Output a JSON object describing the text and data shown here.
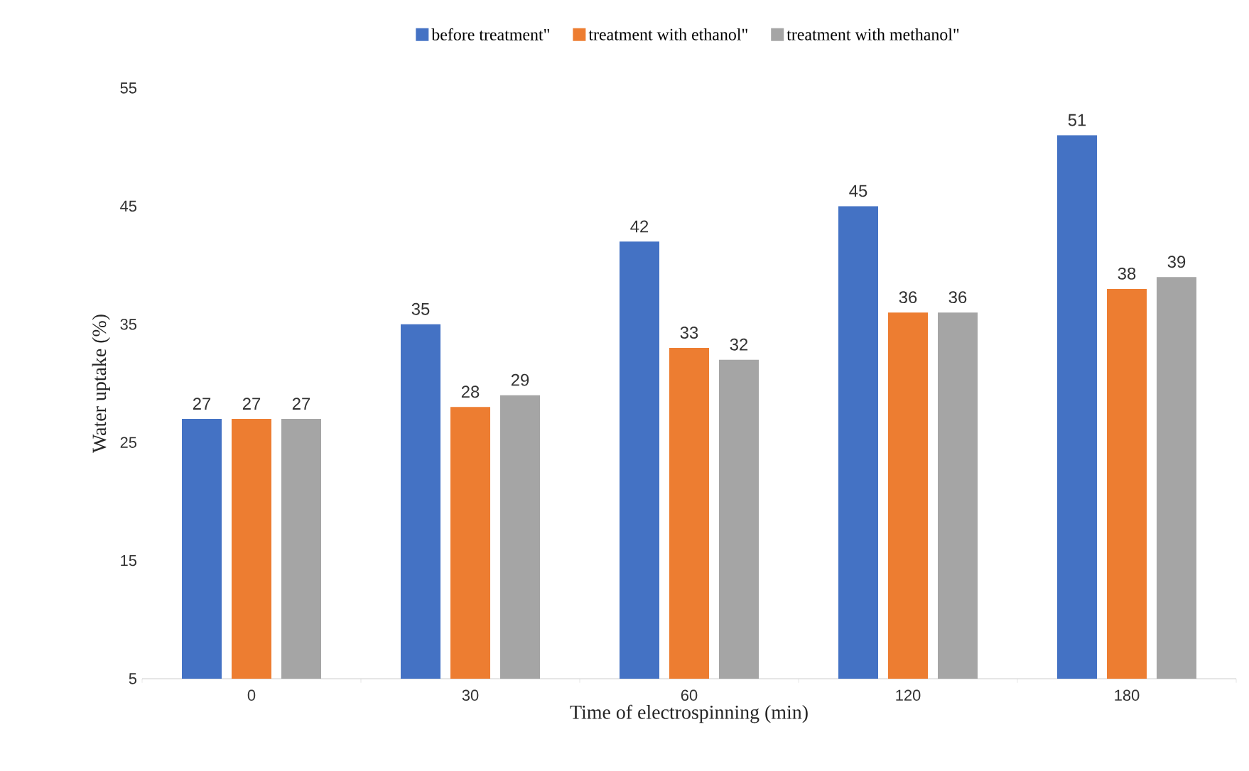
{
  "chart_data": {
    "type": "bar",
    "xlabel": "Time of electrospinning (min)",
    "ylabel": "Water uptake (%)",
    "categories": [
      "0",
      "30",
      "60",
      "120",
      "180"
    ],
    "series": [
      {
        "name": "before treatment\"",
        "color": "#4472c4",
        "values": [
          27,
          35,
          42,
          45,
          51
        ]
      },
      {
        "name": "treatment with ethanol\"",
        "color": "#ed7d31",
        "values": [
          27,
          28,
          33,
          36,
          38
        ]
      },
      {
        "name": "treatment with methanol\"",
        "color": "#a5a5a5",
        "values": [
          27,
          29,
          32,
          36,
          39
        ]
      }
    ],
    "ylim": [
      5,
      55
    ],
    "yticks": [
      5,
      15,
      25,
      35,
      45,
      55
    ],
    "data_labels": true,
    "legend": "top",
    "grid": false
  }
}
